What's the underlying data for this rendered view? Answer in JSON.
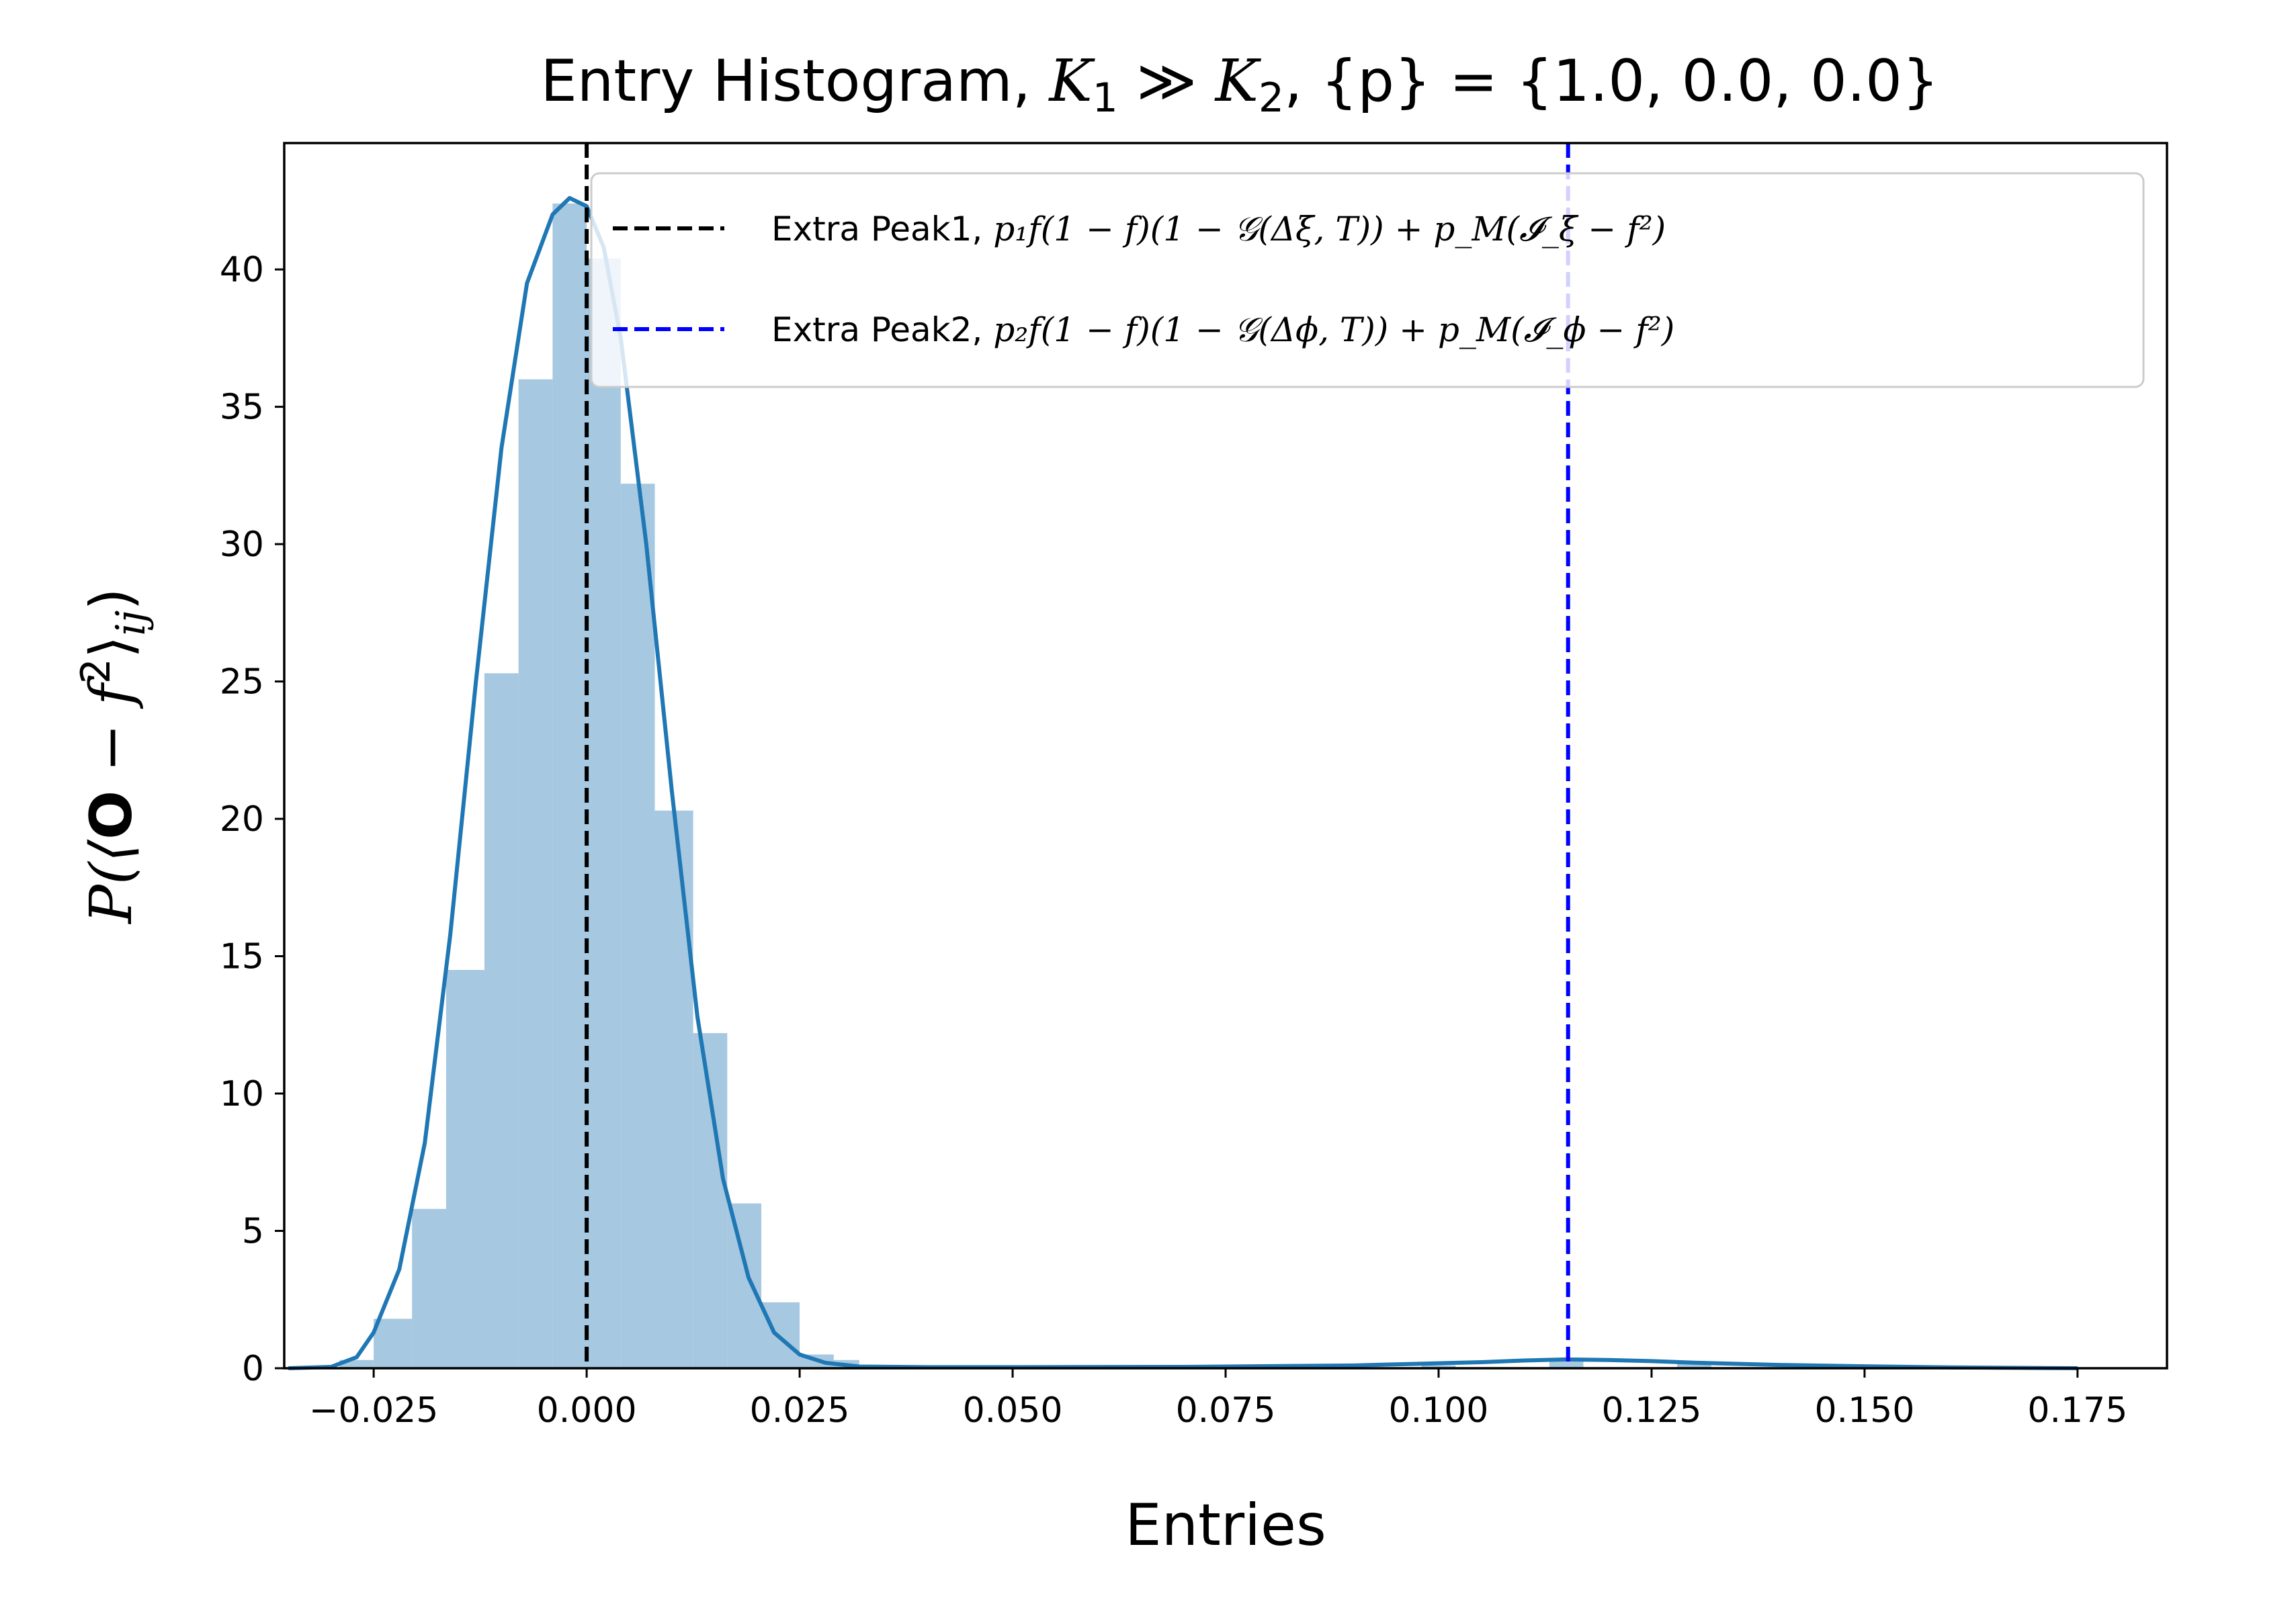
{
  "chart_data": {
    "type": "bar",
    "title": {
      "prefix": "Entry Histogram, ",
      "k1_base": "K",
      "k1_sub": "1",
      "rel": " ≫ ",
      "k2_base": "K",
      "k2_sub": "2",
      "suffix": ", {p} = {1.0, 0.0, 0.0}"
    },
    "xlabel": "Entries",
    "ylabel": {
      "lead": "P(⟨",
      "bold": "O",
      "mid": " − f",
      "sup": "2",
      "close": "⟩",
      "sub": "ij",
      "tail": ")"
    },
    "xlim": [
      -0.0355,
      0.1855
    ],
    "ylim": [
      0,
      44.6
    ],
    "xticks": [
      -0.025,
      0.0,
      0.025,
      0.05,
      0.075,
      0.1,
      0.125,
      0.15,
      0.175
    ],
    "xtick_labels": [
      "−0.025",
      "0.000",
      "0.025",
      "0.050",
      "0.075",
      "0.100",
      "0.125",
      "0.150",
      "0.175"
    ],
    "yticks": [
      0,
      5,
      10,
      15,
      20,
      25,
      30,
      35,
      40
    ],
    "ytick_labels": [
      "0",
      "5",
      "10",
      "15",
      "20",
      "25",
      "30",
      "35",
      "40"
    ],
    "grid": false,
    "legend_position": "upper-right",
    "histogram": {
      "bin_edges": [
        -0.029,
        -0.025,
        -0.0205,
        -0.0165,
        -0.012,
        -0.008,
        -0.004,
        0.0,
        0.004,
        0.008,
        0.0125,
        0.0165,
        0.0205,
        0.025,
        0.029
      ],
      "values": [
        0.3,
        1.8,
        5.8,
        14.5,
        25.3,
        36.0,
        42.4,
        40.4,
        32.2,
        20.3,
        12.2,
        6.0,
        2.4,
        0.5
      ],
      "tail": [
        {
          "x": 0.03,
          "value": 0.3
        },
        {
          "x": 0.04,
          "value": 0.1
        },
        {
          "x": 0.06,
          "value": 0.05
        },
        {
          "x": 0.1,
          "value": 0.1
        },
        {
          "x": 0.115,
          "value": 0.3
        },
        {
          "x": 0.13,
          "value": 0.2
        },
        {
          "x": 0.15,
          "value": 0.1
        },
        {
          "x": 0.17,
          "value": 0.05
        }
      ],
      "color": "#a6c8e0"
    },
    "kde": {
      "x": [
        -0.035,
        -0.03,
        -0.027,
        -0.025,
        -0.022,
        -0.019,
        -0.016,
        -0.013,
        -0.01,
        -0.007,
        -0.004,
        -0.002,
        0.0,
        0.002,
        0.004,
        0.007,
        0.01,
        0.013,
        0.016,
        0.019,
        0.022,
        0.025,
        0.028,
        0.032,
        0.04,
        0.05,
        0.07,
        0.09,
        0.1,
        0.105,
        0.11,
        0.115,
        0.12,
        0.125,
        0.13,
        0.14,
        0.15,
        0.16,
        0.175
      ],
      "y": [
        0.0,
        0.05,
        0.4,
        1.3,
        3.6,
        8.2,
        15.8,
        25.0,
        33.5,
        39.5,
        42.0,
        42.6,
        42.3,
        40.8,
        37.5,
        30.0,
        21.0,
        12.8,
        6.9,
        3.3,
        1.3,
        0.5,
        0.2,
        0.06,
        0.04,
        0.04,
        0.05,
        0.1,
        0.18,
        0.22,
        0.28,
        0.32,
        0.3,
        0.26,
        0.2,
        0.12,
        0.07,
        0.03,
        0.0
      ],
      "color": "#1f77b4"
    },
    "vlines": [
      {
        "x": 0.0,
        "color": "#000000",
        "style": "dashed"
      },
      {
        "x": 0.1152,
        "color": "#0000ff",
        "style": "dashed"
      }
    ],
    "legend": [
      {
        "color": "#000000",
        "label_text": "Extra Peak1, ",
        "formula": "p₁f(1 − f)(1 − 𝒢(Δξ, T)) + p_M(𝓘_ξ − f²)"
      },
      {
        "color": "#0000ff",
        "label_text": "Extra Peak2, ",
        "formula": "p₂f(1 − f)(1 − 𝒢(Δϕ, T)) + p_M(𝓘_ϕ − f²)"
      }
    ]
  }
}
